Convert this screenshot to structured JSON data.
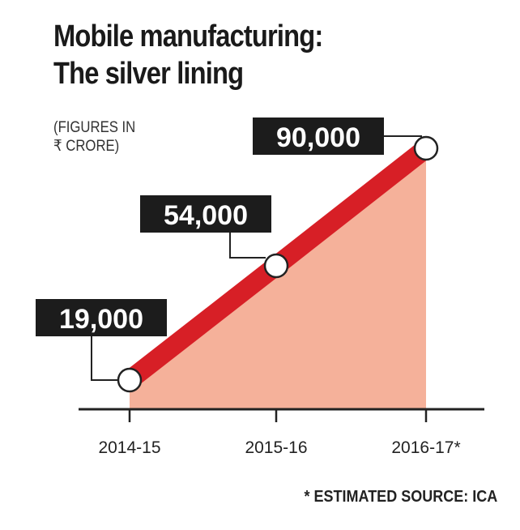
{
  "title_lines": [
    "Mobile manufacturing:",
    "The silver lining"
  ],
  "units_lines": [
    "(FIGURES IN",
    "₹ CRORE)"
  ],
  "footnote": "* ESTIMATED SOURCE: ICA",
  "colors": {
    "line": "#d71f26",
    "area": "#f5b19a",
    "label_box": "#1c1c1c",
    "axis": "#222222",
    "marker_fill": "#ffffff"
  },
  "chart_data": {
    "type": "line",
    "categories": [
      "2014-15",
      "2015-16",
      "2016-17*"
    ],
    "values": [
      19000,
      54000,
      90000
    ],
    "data_labels": [
      "19,000",
      "54,000",
      "90,000"
    ],
    "area_fill": true,
    "grid": false,
    "legend": "none"
  }
}
